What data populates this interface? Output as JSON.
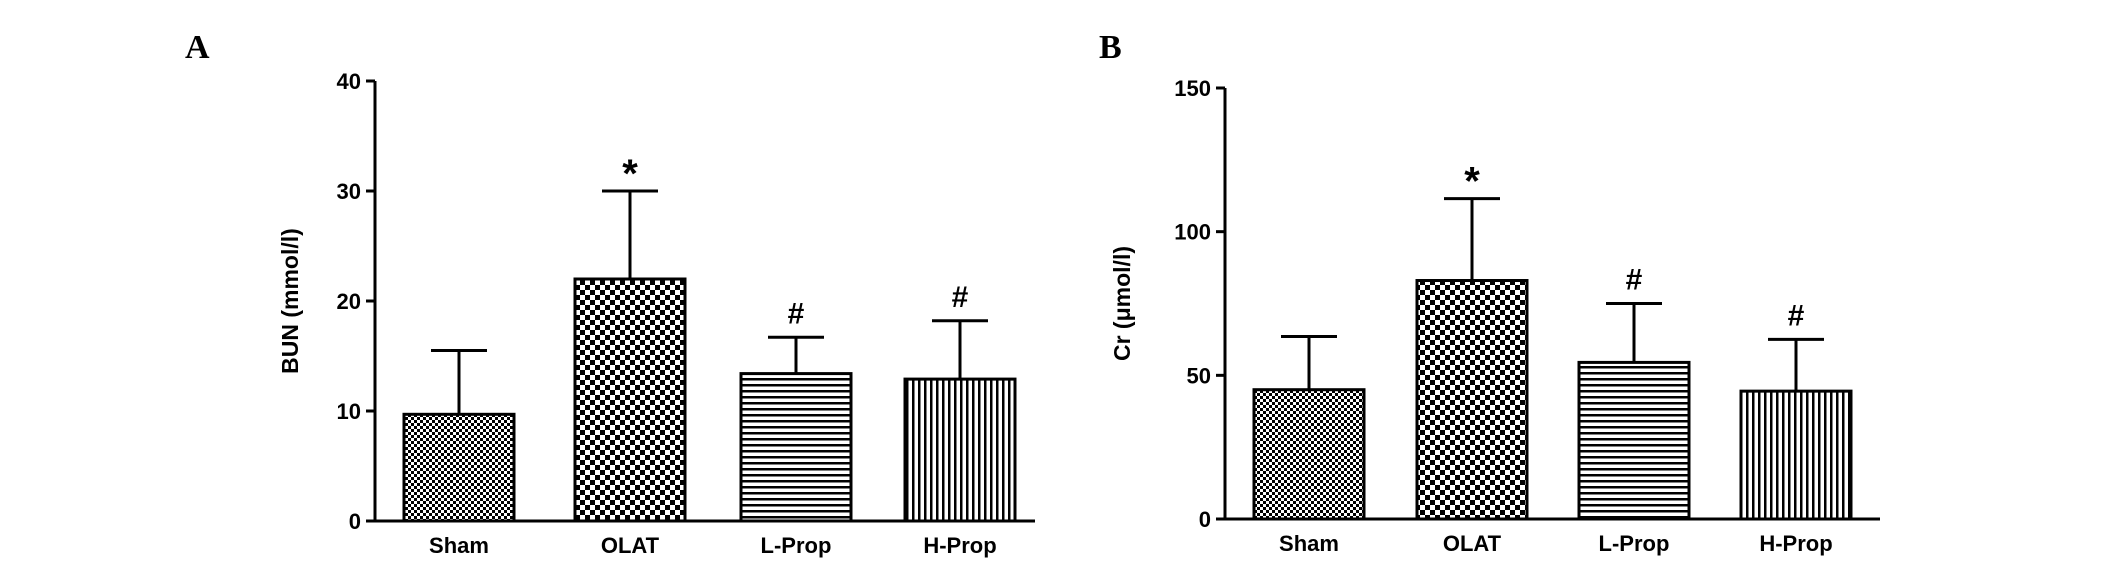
{
  "chart_data": [
    {
      "panel": "A",
      "type": "bar",
      "ylabel": "BUN (mmol/l)",
      "ylim": [
        0,
        40
      ],
      "yticks": [
        0,
        10,
        20,
        30,
        40
      ],
      "categories": [
        "Sham",
        "OLAT",
        "L-Prop",
        "H-Prop"
      ],
      "values": [
        9.7,
        22.0,
        13.4,
        12.9
      ],
      "error": [
        5.8,
        8.0,
        3.3,
        5.3
      ],
      "annotations": [
        "",
        "*",
        "#",
        "#"
      ],
      "patterns": [
        "checker-fine",
        "checker-coarse",
        "horizontal-lines",
        "vertical-lines"
      ]
    },
    {
      "panel": "B",
      "type": "bar",
      "ylabel": "Cr (μmol/l)",
      "ylim": [
        0,
        150
      ],
      "yticks": [
        0,
        50,
        100,
        150
      ],
      "categories": [
        "Sham",
        "OLAT",
        "L-Prop",
        "H-Prop"
      ],
      "values": [
        45,
        83,
        54.5,
        44.5
      ],
      "error": [
        18.5,
        28.5,
        20.5,
        18
      ],
      "annotations": [
        "",
        "*",
        "#",
        "#"
      ],
      "patterns": [
        "checker-fine",
        "checker-coarse",
        "horizontal-lines",
        "vertical-lines"
      ]
    }
  ]
}
